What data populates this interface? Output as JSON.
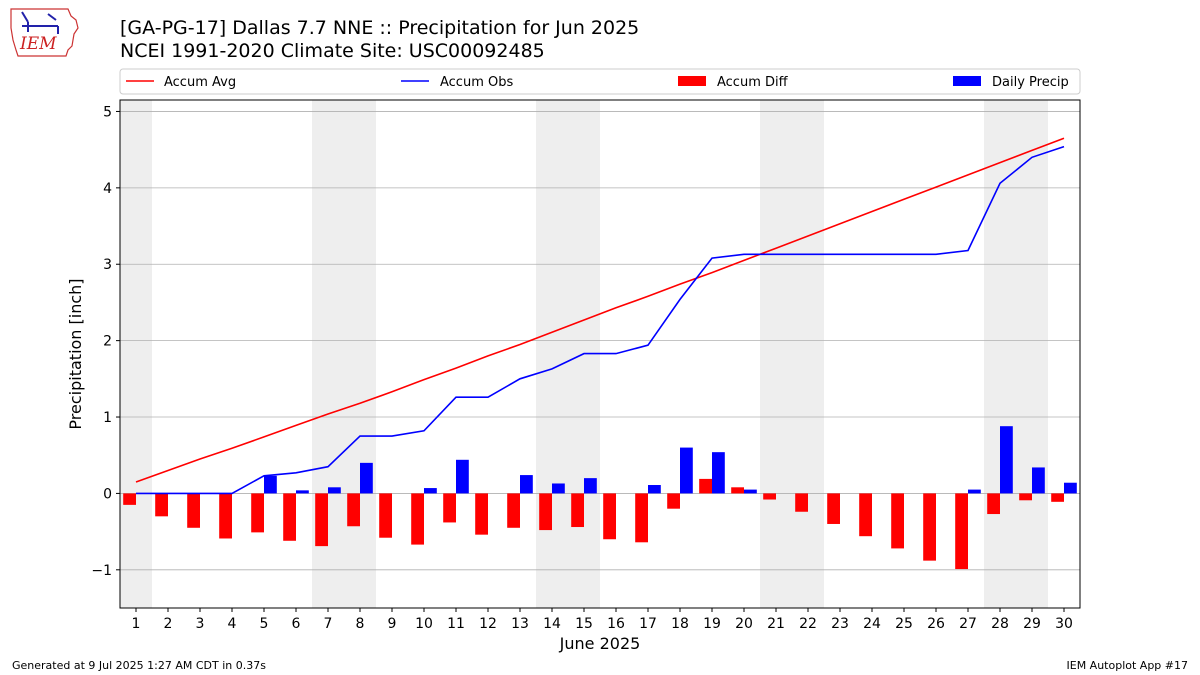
{
  "header": {
    "title_line1": "[GA-PG-17] Dallas 7.7 NNE :: Precipitation for Jun 2025",
    "title_line2": "NCEI 1991-2020 Climate Site: USC00092485"
  },
  "logo": {
    "text": "IEM",
    "icon": "iem-iowa-logo-icon"
  },
  "footer": {
    "left": "Generated at 9 Jul 2025 1:27 AM CDT in 0.37s",
    "right": "IEM Autoplot App #17"
  },
  "chart_data": {
    "type": "bar",
    "xlabel": "June 2025",
    "ylabel": "Precipitation [inch]",
    "xlim": [
      0.5,
      30.5
    ],
    "ylim": [
      -1.5,
      5.15
    ],
    "yticks": [
      -1,
      0,
      1,
      2,
      3,
      4,
      5
    ],
    "ytick_labels": [
      "−1",
      "0",
      "1",
      "2",
      "3",
      "4",
      "5"
    ],
    "grid": "horizontal",
    "legend": "top, horizontal",
    "weekend_shading": [
      [
        1,
        1
      ],
      [
        7,
        8
      ],
      [
        14,
        15
      ],
      [
        21,
        22
      ],
      [
        28,
        29
      ]
    ],
    "x": [
      1,
      2,
      3,
      4,
      5,
      6,
      7,
      8,
      9,
      10,
      11,
      12,
      13,
      14,
      15,
      16,
      17,
      18,
      19,
      20,
      21,
      22,
      23,
      24,
      25,
      26,
      27,
      28,
      29,
      30
    ],
    "series": [
      {
        "name": "Accum Avg",
        "kind": "line",
        "color": "#ff0000",
        "values": [
          0.15,
          0.3,
          0.45,
          0.59,
          0.74,
          0.89,
          1.04,
          1.18,
          1.33,
          1.49,
          1.64,
          1.8,
          1.95,
          2.11,
          2.27,
          2.43,
          2.58,
          2.74,
          2.89,
          3.05,
          3.21,
          3.37,
          3.53,
          3.69,
          3.85,
          4.01,
          4.17,
          4.33,
          4.49,
          4.65
        ]
      },
      {
        "name": "Accum Obs",
        "kind": "line",
        "color": "#0000ff",
        "values": [
          0,
          0,
          0,
          0,
          0.23,
          0.27,
          0.35,
          0.75,
          0.75,
          0.82,
          1.26,
          1.26,
          1.5,
          1.63,
          1.83,
          1.83,
          1.94,
          2.54,
          3.08,
          3.13,
          3.13,
          3.13,
          3.13,
          3.13,
          3.13,
          3.13,
          3.18,
          4.06,
          4.4,
          4.54
        ]
      },
      {
        "name": "Accum Diff",
        "kind": "bar",
        "color": "#ff0000",
        "values": [
          -0.15,
          -0.3,
          -0.45,
          -0.59,
          -0.51,
          -0.62,
          -0.69,
          -0.43,
          -0.58,
          -0.67,
          -0.38,
          -0.54,
          -0.45,
          -0.48,
          -0.44,
          -0.6,
          -0.64,
          -0.2,
          0.19,
          0.08,
          -0.08,
          -0.24,
          -0.4,
          -0.56,
          -0.72,
          -0.88,
          -0.99,
          -0.27,
          -0.09,
          -0.11
        ]
      },
      {
        "name": "Daily Precip",
        "kind": "bar",
        "color": "#0000ff",
        "values": [
          0,
          0,
          0,
          0,
          0.23,
          0.04,
          0.08,
          0.4,
          0,
          0.07,
          0.44,
          0,
          0.24,
          0.13,
          0.2,
          0,
          0.11,
          0.6,
          0.54,
          0.05,
          0,
          0,
          0,
          0,
          0,
          0,
          0.05,
          0.88,
          0.34,
          0.14
        ]
      }
    ]
  }
}
